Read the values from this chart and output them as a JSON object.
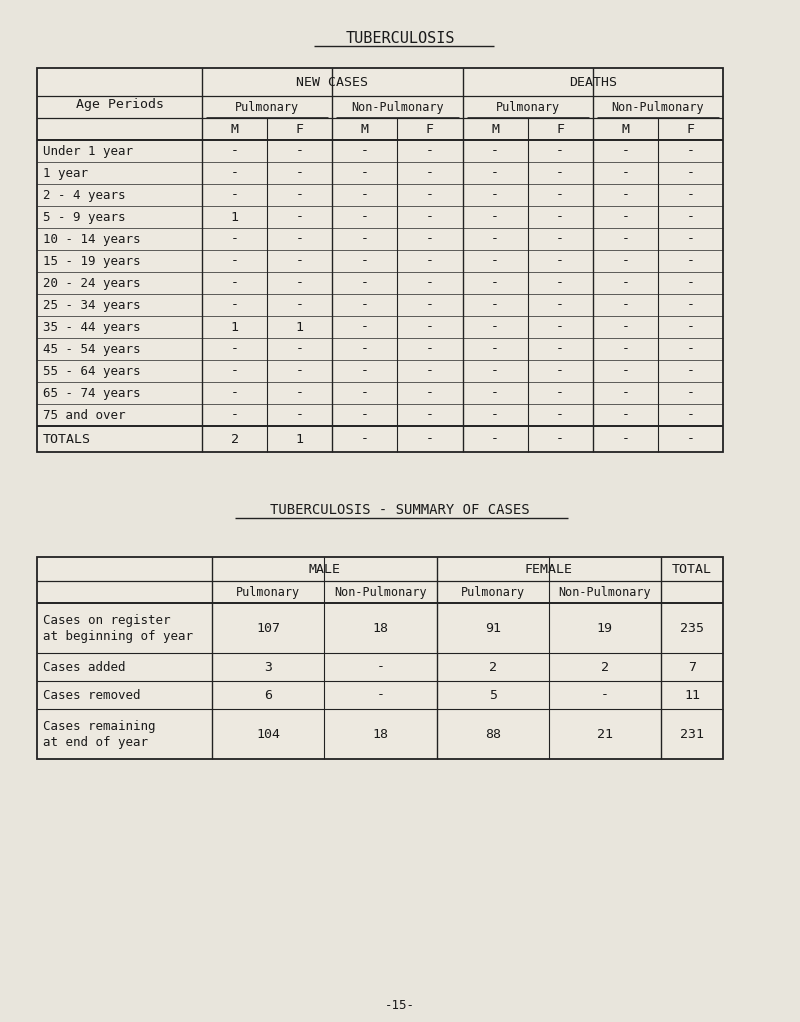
{
  "bg_color": "#e8e5dc",
  "cell_color": "#ede9e0",
  "text_color": "#1a1a1a",
  "line_color": "#222222",
  "title1": "TUBERCULOSIS",
  "title2": "TUBERCULOSIS - SUMMARY OF CASES",
  "page_number": "-15-",
  "table1": {
    "age_periods": [
      "Under 1 year",
      "1 year",
      "2 - 4 years",
      "5 - 9 years",
      "10 - 14 years",
      "15 - 19 years",
      "20 - 24 years",
      "25 - 34 years",
      "35 - 44 years",
      "45 - 54 years",
      "55 - 64 years",
      "65 - 74 years",
      "75 and over"
    ],
    "data": [
      [
        "-",
        "-",
        "-",
        "-",
        "-",
        "-",
        "-",
        "-"
      ],
      [
        "-",
        "-",
        "-",
        "-",
        "-",
        "-",
        "-",
        "-"
      ],
      [
        "-",
        "-",
        "-",
        "-",
        "-",
        "-",
        "-",
        "-"
      ],
      [
        "1",
        "-",
        "-",
        "-",
        "-",
        "-",
        "-",
        "-"
      ],
      [
        "-",
        "-",
        "-",
        "-",
        "-",
        "-",
        "-",
        "-"
      ],
      [
        "-",
        "-",
        "-",
        "-",
        "-",
        "-",
        "-",
        "-"
      ],
      [
        "-",
        "-",
        "-",
        "-",
        "-",
        "-",
        "-",
        "-"
      ],
      [
        "-",
        "-",
        "-",
        "-",
        "-",
        "-",
        "-",
        "-"
      ],
      [
        "1",
        "1",
        "-",
        "-",
        "-",
        "-",
        "-",
        "-"
      ],
      [
        "-",
        "-",
        "-",
        "-",
        "-",
        "-",
        "-",
        "-"
      ],
      [
        "-",
        "-",
        "-",
        "-",
        "-",
        "-",
        "-",
        "-"
      ],
      [
        "-",
        "-",
        "-",
        "-",
        "-",
        "-",
        "-",
        "-"
      ],
      [
        "-",
        "-",
        "-",
        "-",
        "-",
        "-",
        "-",
        "-"
      ]
    ],
    "totals": [
      "2",
      "1",
      "-",
      "-",
      "-",
      "-",
      "-",
      "-"
    ]
  },
  "table2": {
    "rows": [
      [
        "Cases on register\nat beginning of year",
        "107",
        "18",
        "91",
        "19",
        "235"
      ],
      [
        "Cases added",
        "3",
        "-",
        "2",
        "2",
        "7"
      ],
      [
        "Cases removed",
        "6",
        "-",
        "5",
        "-",
        "11"
      ],
      [
        "Cases remaining\nat end of year",
        "104",
        "18",
        "88",
        "21",
        "231"
      ]
    ]
  }
}
